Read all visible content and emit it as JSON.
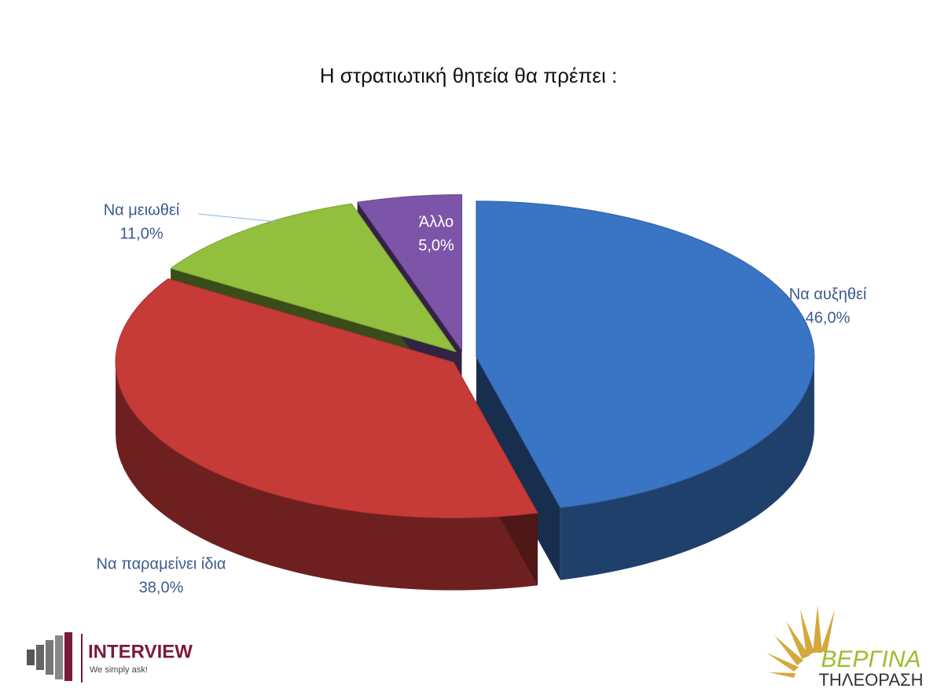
{
  "chart_data": {
    "type": "pie",
    "title": "Η στρατιωτική θητεία θα πρέπει :",
    "categories": [
      "Να αυξηθεί",
      "Να παραμείνει ίδια",
      "Να μειωθεί",
      "Άλλο"
    ],
    "values": [
      46,
      38,
      11,
      5
    ],
    "value_labels": [
      "46,0%",
      "38,0%",
      "11,0%",
      "5,0%"
    ],
    "colors": [
      "#3a74c4",
      "#c63a38",
      "#92bf3e",
      "#7d55a8"
    ]
  },
  "logos": {
    "left": {
      "name": "INTERVIEW",
      "tagline": "We simply ask!"
    },
    "right": {
      "name": "ΒΕΡΓΙΝΑ",
      "subtitle": "ΤΗΛΕΟΡΑΣΗ"
    }
  }
}
